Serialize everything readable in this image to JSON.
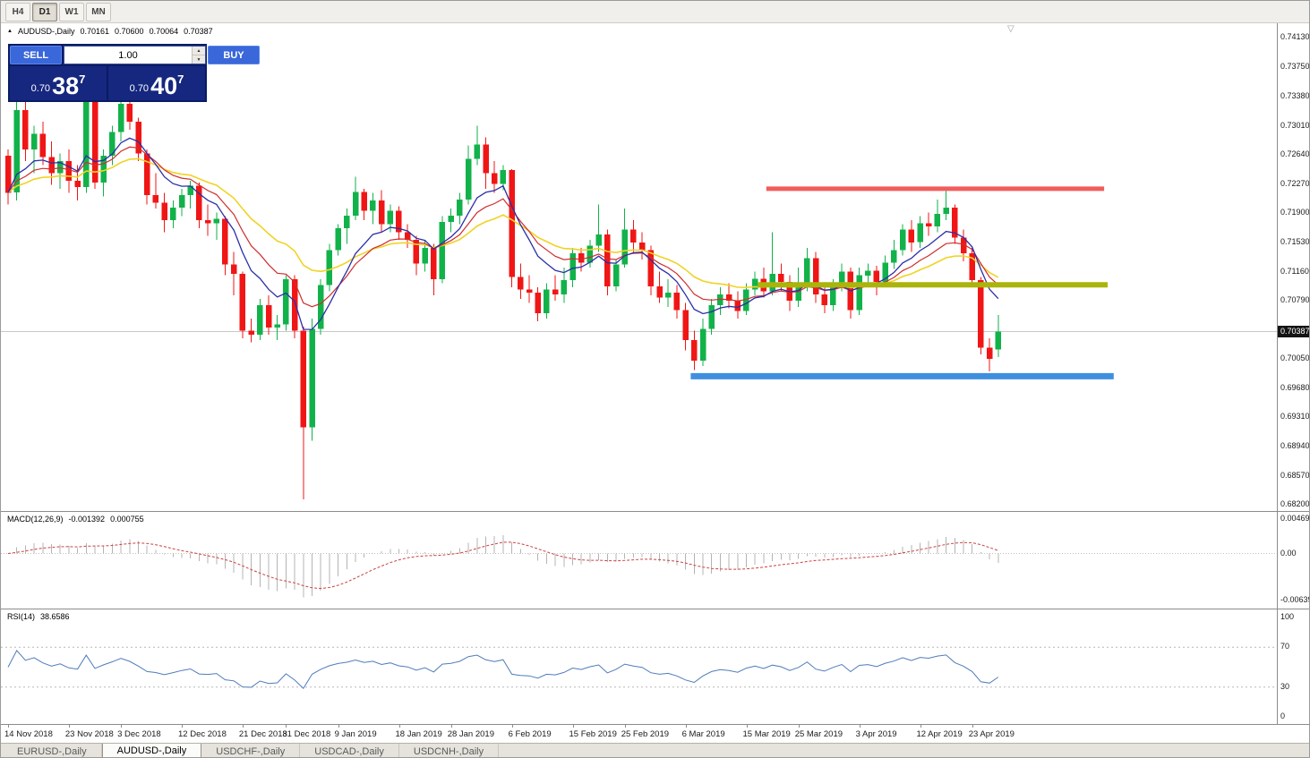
{
  "icons": {
    "symbol_arrow": "▲",
    "shift_marker": "▽",
    "spinner_up": "▲",
    "spinner_down": "▼"
  },
  "toolbar": {
    "timeframes": [
      {
        "label": "H4",
        "active": false
      },
      {
        "label": "D1",
        "active": true
      },
      {
        "label": "W1",
        "active": false
      },
      {
        "label": "MN",
        "active": false
      }
    ]
  },
  "chart_header": {
    "symbol": "AUDUSD-,Daily",
    "open": "0.70161",
    "high": "0.70600",
    "low": "0.70064",
    "close": "0.70387"
  },
  "trade_panel": {
    "sell_label": "SELL",
    "buy_label": "BUY",
    "volume": "1.00",
    "bid": {
      "prefix": "0.70",
      "main": "38",
      "pip": "7"
    },
    "ask": {
      "prefix": "0.70",
      "main": "40",
      "pip": "7"
    }
  },
  "price_axis": {
    "labels": [
      {
        "text": "0.74130",
        "price": 0.7413
      },
      {
        "text": "0.73750",
        "price": 0.7375
      },
      {
        "text": "0.73380",
        "price": 0.7338
      },
      {
        "text": "0.73010",
        "price": 0.7301
      },
      {
        "text": "0.72640",
        "price": 0.7264
      },
      {
        "text": "0.72270",
        "price": 0.7227
      },
      {
        "text": "0.71900",
        "price": 0.719
      },
      {
        "text": "0.71530",
        "price": 0.7153
      },
      {
        "text": "0.71160",
        "price": 0.7116
      },
      {
        "text": "0.70790",
        "price": 0.7079
      },
      {
        "text": "0.70050",
        "price": 0.7005
      },
      {
        "text": "0.69680",
        "price": 0.6968
      },
      {
        "text": "0.69310",
        "price": 0.6931
      },
      {
        "text": "0.68940",
        "price": 0.6894
      },
      {
        "text": "0.68570",
        "price": 0.6857
      },
      {
        "text": "0.68200",
        "price": 0.682
      }
    ],
    "current": {
      "text": "0.70387",
      "price": 0.70387
    }
  },
  "macd_panel": {
    "title": "MACD(12,26,9)",
    "main_value": "-0.001392",
    "signal_value": "0.000755",
    "axis": [
      {
        "text": "0.004694",
        "v": 0.004694
      },
      {
        "text": "0.00",
        "v": 0
      },
      {
        "text": "-0.00639",
        "v": -0.00639
      }
    ]
  },
  "rsi_panel": {
    "title": "RSI(14)",
    "value": "38.6586",
    "axis": [
      {
        "text": "100",
        "v": 100
      },
      {
        "text": "70",
        "v": 70
      },
      {
        "text": "30",
        "v": 30
      },
      {
        "text": "0",
        "v": 0
      }
    ],
    "levels": [
      70,
      30
    ]
  },
  "date_axis": [
    {
      "text": "14 Nov 2018",
      "i": 0
    },
    {
      "text": "23 Nov 2018",
      "i": 7
    },
    {
      "text": "3 Dec 2018",
      "i": 13
    },
    {
      "text": "12 Dec 2018",
      "i": 20
    },
    {
      "text": "21 Dec 2018",
      "i": 27
    },
    {
      "text": "31 Dec 2018",
      "i": 32
    },
    {
      "text": "9 Jan 2019",
      "i": 38
    },
    {
      "text": "18 Jan 2019",
      "i": 45
    },
    {
      "text": "28 Jan 2019",
      "i": 51
    },
    {
      "text": "6 Feb 2019",
      "i": 58
    },
    {
      "text": "15 Feb 2019",
      "i": 65
    },
    {
      "text": "25 Feb 2019",
      "i": 71
    },
    {
      "text": "6 Mar 2019",
      "i": 78
    },
    {
      "text": "15 Mar 2019",
      "i": 85
    },
    {
      "text": "25 Mar 2019",
      "i": 91
    },
    {
      "text": "3 Apr 2019",
      "i": 98
    },
    {
      "text": "12 Apr 2019",
      "i": 105
    },
    {
      "text": "23 Apr 2019",
      "i": 111
    }
  ],
  "tabs": [
    {
      "label": "EURUSD-,Daily",
      "active": false
    },
    {
      "label": "AUDUSD-,Daily",
      "active": true
    },
    {
      "label": "USDCHF-,Daily",
      "active": false
    },
    {
      "label": "USDCAD-,Daily",
      "active": false
    },
    {
      "label": "USDCNH-,Daily",
      "active": false
    }
  ],
  "chart_data": {
    "type": "candlestick",
    "symbol": "AUDUSD",
    "period": "Daily",
    "current_price": 0.70387,
    "price_range": [
      0.6811,
      0.743
    ],
    "colors": {
      "up": "#12b24a",
      "down": "#f01616",
      "macd_hist": "#b4b4b4",
      "macd_signal": "#cc4040",
      "rsi": "#4f7cba",
      "current_line": "#c8c8c8"
    },
    "overlays": {
      "moving_averages": [
        {
          "period": 24,
          "color": "#f0d325",
          "width": 1.6
        },
        {
          "period": 13,
          "color": "#cf2e2e",
          "width": 1.2
        },
        {
          "period": 8,
          "color": "#2b2fa8",
          "width": 1.3
        }
      ]
    },
    "levels": [
      {
        "name": "resistance-line",
        "price": 0.722,
        "color": "#f25c5c",
        "width": 5,
        "i1": 87.3,
        "i2": 126.2
      },
      {
        "name": "broken-support-line",
        "price": 0.7098,
        "color": "#aab40a",
        "width": 6,
        "i1": 86.3,
        "i2": 126.6
      },
      {
        "name": "support-line",
        "price": 0.6982,
        "color": "#3f8fdf",
        "width": 7,
        "i1": 78.6,
        "i2": 127.3
      }
    ],
    "indicators": {
      "macd": {
        "fast": 12,
        "slow": 26,
        "signal": 9
      },
      "rsi": {
        "period": 14
      }
    },
    "candles": [
      [
        0.7262,
        0.727,
        0.72,
        0.7215
      ],
      [
        0.7215,
        0.7335,
        0.7205,
        0.732
      ],
      [
        0.732,
        0.733,
        0.7255,
        0.727
      ],
      [
        0.727,
        0.73,
        0.724,
        0.729
      ],
      [
        0.729,
        0.7305,
        0.725,
        0.726
      ],
      [
        0.726,
        0.728,
        0.7225,
        0.724
      ],
      [
        0.724,
        0.7265,
        0.722,
        0.7255
      ],
      [
        0.7255,
        0.727,
        0.7215,
        0.723
      ],
      [
        0.723,
        0.725,
        0.7205,
        0.7222
      ],
      [
        0.7222,
        0.734,
        0.7215,
        0.733
      ],
      [
        0.733,
        0.7338,
        0.722,
        0.7228
      ],
      [
        0.7228,
        0.727,
        0.721,
        0.7262
      ],
      [
        0.7262,
        0.73,
        0.725,
        0.7292
      ],
      [
        0.7292,
        0.7335,
        0.728,
        0.7328
      ],
      [
        0.7328,
        0.734,
        0.7295,
        0.7305
      ],
      [
        0.7305,
        0.731,
        0.7255,
        0.7265
      ],
      [
        0.7265,
        0.727,
        0.72,
        0.7212
      ],
      [
        0.7212,
        0.724,
        0.7195,
        0.7202
      ],
      [
        0.7202,
        0.7215,
        0.7165,
        0.718
      ],
      [
        0.718,
        0.7205,
        0.717,
        0.7196
      ],
      [
        0.7196,
        0.722,
        0.7185,
        0.7212
      ],
      [
        0.7212,
        0.723,
        0.7195,
        0.7224
      ],
      [
        0.7224,
        0.7228,
        0.717,
        0.718
      ],
      [
        0.718,
        0.72,
        0.716,
        0.7176
      ],
      [
        0.7176,
        0.719,
        0.7155,
        0.7182
      ],
      [
        0.7182,
        0.7185,
        0.711,
        0.7124
      ],
      [
        0.7124,
        0.714,
        0.7085,
        0.7112
      ],
      [
        0.7112,
        0.7115,
        0.703,
        0.704
      ],
      [
        0.704,
        0.7055,
        0.7025,
        0.7035
      ],
      [
        0.7035,
        0.708,
        0.7028,
        0.7072
      ],
      [
        0.7072,
        0.7085,
        0.7035,
        0.7044
      ],
      [
        0.7044,
        0.706,
        0.7028,
        0.7048
      ],
      [
        0.7048,
        0.711,
        0.704,
        0.7105
      ],
      [
        0.7105,
        0.711,
        0.703,
        0.704
      ],
      [
        0.704,
        0.7045,
        0.6826,
        0.6917
      ],
      [
        0.6917,
        0.7055,
        0.69,
        0.7042
      ],
      [
        0.7042,
        0.7105,
        0.7035,
        0.7098
      ],
      [
        0.7098,
        0.715,
        0.709,
        0.7142
      ],
      [
        0.7142,
        0.7175,
        0.7135,
        0.717
      ],
      [
        0.717,
        0.7195,
        0.715,
        0.7186
      ],
      [
        0.7186,
        0.7235,
        0.718,
        0.7216
      ],
      [
        0.7216,
        0.722,
        0.718,
        0.7192
      ],
      [
        0.7192,
        0.7215,
        0.7175,
        0.7205
      ],
      [
        0.7205,
        0.7218,
        0.7165,
        0.7175
      ],
      [
        0.7175,
        0.72,
        0.7165,
        0.7192
      ],
      [
        0.7192,
        0.7198,
        0.7155,
        0.7165
      ],
      [
        0.7165,
        0.7175,
        0.7145,
        0.7155
      ],
      [
        0.7155,
        0.716,
        0.711,
        0.7125
      ],
      [
        0.7125,
        0.7155,
        0.7115,
        0.7145
      ],
      [
        0.7145,
        0.715,
        0.7085,
        0.7105
      ],
      [
        0.7105,
        0.7185,
        0.71,
        0.7178
      ],
      [
        0.7178,
        0.7195,
        0.7165,
        0.7186
      ],
      [
        0.7186,
        0.7215,
        0.7175,
        0.7206
      ],
      [
        0.7206,
        0.7275,
        0.72,
        0.7258
      ],
      [
        0.7258,
        0.73,
        0.725,
        0.7276
      ],
      [
        0.7276,
        0.7285,
        0.722,
        0.724
      ],
      [
        0.724,
        0.7255,
        0.7215,
        0.7226
      ],
      [
        0.7226,
        0.725,
        0.7218,
        0.7244
      ],
      [
        0.7244,
        0.7245,
        0.7095,
        0.7108
      ],
      [
        0.7108,
        0.7125,
        0.708,
        0.7092
      ],
      [
        0.7092,
        0.711,
        0.7075,
        0.7088
      ],
      [
        0.7088,
        0.7095,
        0.7052,
        0.7062
      ],
      [
        0.7062,
        0.71,
        0.7055,
        0.7092
      ],
      [
        0.7092,
        0.711,
        0.7078,
        0.7086
      ],
      [
        0.7086,
        0.712,
        0.7075,
        0.7104
      ],
      [
        0.7104,
        0.7145,
        0.7095,
        0.7138
      ],
      [
        0.7138,
        0.7145,
        0.7115,
        0.7126
      ],
      [
        0.7126,
        0.7155,
        0.712,
        0.7148
      ],
      [
        0.7148,
        0.72,
        0.714,
        0.7162
      ],
      [
        0.7162,
        0.7168,
        0.7085,
        0.7096
      ],
      [
        0.7096,
        0.713,
        0.709,
        0.7124
      ],
      [
        0.7124,
        0.7195,
        0.712,
        0.7168
      ],
      [
        0.7168,
        0.718,
        0.714,
        0.7152
      ],
      [
        0.7152,
        0.7165,
        0.713,
        0.7142
      ],
      [
        0.7142,
        0.7148,
        0.7085,
        0.7096
      ],
      [
        0.7096,
        0.7115,
        0.7075,
        0.7082
      ],
      [
        0.7082,
        0.7105,
        0.707,
        0.7088
      ],
      [
        0.7088,
        0.7098,
        0.7055,
        0.7066
      ],
      [
        0.7066,
        0.7075,
        0.7015,
        0.7028
      ],
      [
        0.7028,
        0.704,
        0.699,
        0.7002
      ],
      [
        0.7002,
        0.7055,
        0.6995,
        0.7042
      ],
      [
        0.7042,
        0.708,
        0.7035,
        0.7072
      ],
      [
        0.7072,
        0.7095,
        0.706,
        0.7086
      ],
      [
        0.7086,
        0.71,
        0.7068,
        0.7078
      ],
      [
        0.7078,
        0.709,
        0.7055,
        0.7065
      ],
      [
        0.7065,
        0.71,
        0.706,
        0.7092
      ],
      [
        0.7092,
        0.7115,
        0.7085,
        0.7106
      ],
      [
        0.7106,
        0.712,
        0.7082,
        0.709
      ],
      [
        0.709,
        0.7165,
        0.7085,
        0.7112
      ],
      [
        0.7112,
        0.7125,
        0.709,
        0.7102
      ],
      [
        0.7102,
        0.711,
        0.7065,
        0.7078
      ],
      [
        0.7078,
        0.712,
        0.707,
        0.7096
      ],
      [
        0.7096,
        0.7145,
        0.709,
        0.7132
      ],
      [
        0.7132,
        0.714,
        0.7075,
        0.7086
      ],
      [
        0.7086,
        0.7098,
        0.7062,
        0.7072
      ],
      [
        0.7072,
        0.7105,
        0.7065,
        0.7096
      ],
      [
        0.7096,
        0.7125,
        0.709,
        0.7115
      ],
      [
        0.7115,
        0.712,
        0.7055,
        0.7066
      ],
      [
        0.7066,
        0.712,
        0.706,
        0.711
      ],
      [
        0.711,
        0.7125,
        0.7095,
        0.7116
      ],
      [
        0.7116,
        0.7122,
        0.7085,
        0.7102
      ],
      [
        0.7102,
        0.7135,
        0.7098,
        0.7126
      ],
      [
        0.7126,
        0.7155,
        0.7118,
        0.7142
      ],
      [
        0.7142,
        0.7175,
        0.7135,
        0.7168
      ],
      [
        0.7168,
        0.718,
        0.714,
        0.7152
      ],
      [
        0.7152,
        0.7185,
        0.7145,
        0.7176
      ],
      [
        0.7176,
        0.719,
        0.716,
        0.7172
      ],
      [
        0.7172,
        0.7206,
        0.7165,
        0.7188
      ],
      [
        0.7188,
        0.722,
        0.718,
        0.7196
      ],
      [
        0.7196,
        0.72,
        0.715,
        0.7158
      ],
      [
        0.7158,
        0.7168,
        0.7128,
        0.7138
      ],
      [
        0.7138,
        0.7145,
        0.7095,
        0.7104
      ],
      [
        0.7104,
        0.7108,
        0.701,
        0.7018
      ],
      [
        0.7018,
        0.703,
        0.6988,
        0.7004
      ],
      [
        0.70161,
        0.706,
        0.70064,
        0.70387
      ]
    ]
  }
}
